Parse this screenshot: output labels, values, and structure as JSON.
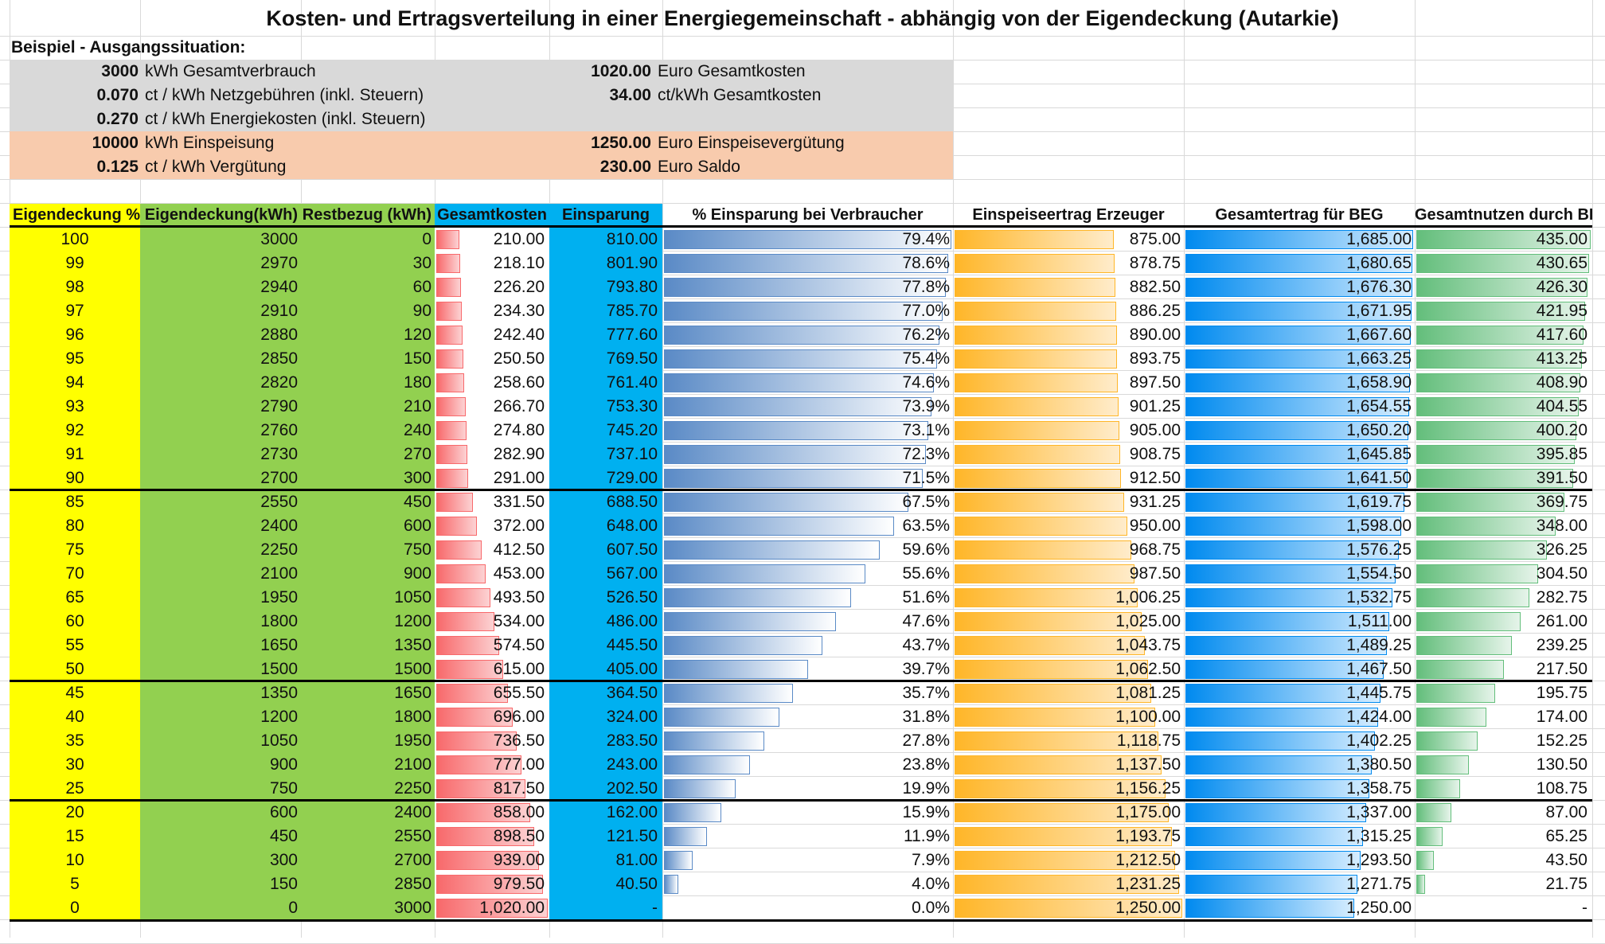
{
  "title": "Kosten- und Ertragsverteilung in einer Energiegemeinschaft - abhängig von der Eigendeckung (Autarkie)",
  "example_heading": "Beispiel - Ausgangssituation:",
  "left_info": [
    {
      "value": "3000",
      "label": "kWh Gesamtverbrauch"
    },
    {
      "value": "0.070",
      "label": "ct / kWh Netzgebühren (inkl. Steuern)"
    },
    {
      "value": "0.270",
      "label": "ct / kWh Energiekosten (inkl. Steuern)"
    },
    {
      "value": "10000",
      "label": "kWh Einspeisung"
    },
    {
      "value": "0.125",
      "label": "ct / kWh Vergütung"
    }
  ],
  "right_info": [
    {
      "value": "1020.00",
      "label": "Euro Gesamtkosten"
    },
    {
      "value": "34.00",
      "label": "ct/kWh Gesamtkosten"
    },
    {
      "value": "",
      "label": ""
    },
    {
      "value": "1250.00",
      "label": "Euro Einspeisevergütung"
    },
    {
      "value": "230.00",
      "label": "Euro Saldo"
    }
  ],
  "colors": {
    "yellow": "#ffff00",
    "green": "#92d050",
    "blue": "#00b0f0",
    "gray_band": "#d9d9d9",
    "peach_band": "#f8cbad",
    "bar_red": "#f8696b",
    "bar_blue": "#638ec6",
    "bar_orange": "#ffb628",
    "bar_lightblue": "#008aef",
    "bar_green": "#63be7b"
  },
  "headers": [
    "Eigendeckung %",
    "Eigendeckung(kWh)",
    "Restbezug (kWh)",
    "Gesamtkosten",
    "Einsparung",
    "% Einsparung bei Verbraucher",
    "Einspeiseertrag Erzeuger",
    "Gesamtertrag für BEG",
    "Gesamtnutzen durch BEG"
  ],
  "rows": [
    [
      "100",
      "3000",
      "0",
      "210.00",
      "810.00",
      "79.4%",
      "875.00",
      "1,685.00",
      "435.00"
    ],
    [
      "99",
      "2970",
      "30",
      "218.10",
      "801.90",
      "78.6%",
      "878.75",
      "1,680.65",
      "430.65"
    ],
    [
      "98",
      "2940",
      "60",
      "226.20",
      "793.80",
      "77.8%",
      "882.50",
      "1,676.30",
      "426.30"
    ],
    [
      "97",
      "2910",
      "90",
      "234.30",
      "785.70",
      "77.0%",
      "886.25",
      "1,671.95",
      "421.95"
    ],
    [
      "96",
      "2880",
      "120",
      "242.40",
      "777.60",
      "76.2%",
      "890.00",
      "1,667.60",
      "417.60"
    ],
    [
      "95",
      "2850",
      "150",
      "250.50",
      "769.50",
      "75.4%",
      "893.75",
      "1,663.25",
      "413.25"
    ],
    [
      "94",
      "2820",
      "180",
      "258.60",
      "761.40",
      "74.6%",
      "897.50",
      "1,658.90",
      "408.90"
    ],
    [
      "93",
      "2790",
      "210",
      "266.70",
      "753.30",
      "73.9%",
      "901.25",
      "1,654.55",
      "404.55"
    ],
    [
      "92",
      "2760",
      "240",
      "274.80",
      "745.20",
      "73.1%",
      "905.00",
      "1,650.20",
      "400.20"
    ],
    [
      "91",
      "2730",
      "270",
      "282.90",
      "737.10",
      "72.3%",
      "908.75",
      "1,645.85",
      "395.85"
    ],
    [
      "90",
      "2700",
      "300",
      "291.00",
      "729.00",
      "71.5%",
      "912.50",
      "1,641.50",
      "391.50"
    ],
    [
      "85",
      "2550",
      "450",
      "331.50",
      "688.50",
      "67.5%",
      "931.25",
      "1,619.75",
      "369.75"
    ],
    [
      "80",
      "2400",
      "600",
      "372.00",
      "648.00",
      "63.5%",
      "950.00",
      "1,598.00",
      "348.00"
    ],
    [
      "75",
      "2250",
      "750",
      "412.50",
      "607.50",
      "59.6%",
      "968.75",
      "1,576.25",
      "326.25"
    ],
    [
      "70",
      "2100",
      "900",
      "453.00",
      "567.00",
      "55.6%",
      "987.50",
      "1,554.50",
      "304.50"
    ],
    [
      "65",
      "1950",
      "1050",
      "493.50",
      "526.50",
      "51.6%",
      "1,006.25",
      "1,532.75",
      "282.75"
    ],
    [
      "60",
      "1800",
      "1200",
      "534.00",
      "486.00",
      "47.6%",
      "1,025.00",
      "1,511.00",
      "261.00"
    ],
    [
      "55",
      "1650",
      "1350",
      "574.50",
      "445.50",
      "43.7%",
      "1,043.75",
      "1,489.25",
      "239.25"
    ],
    [
      "50",
      "1500",
      "1500",
      "615.00",
      "405.00",
      "39.7%",
      "1,062.50",
      "1,467.50",
      "217.50"
    ],
    [
      "45",
      "1350",
      "1650",
      "655.50",
      "364.50",
      "35.7%",
      "1,081.25",
      "1,445.75",
      "195.75"
    ],
    [
      "40",
      "1200",
      "1800",
      "696.00",
      "324.00",
      "31.8%",
      "1,100.00",
      "1,424.00",
      "174.00"
    ],
    [
      "35",
      "1050",
      "1950",
      "736.50",
      "283.50",
      "27.8%",
      "1,118.75",
      "1,402.25",
      "152.25"
    ],
    [
      "30",
      "900",
      "2100",
      "777.00",
      "243.00",
      "23.8%",
      "1,137.50",
      "1,380.50",
      "130.50"
    ],
    [
      "25",
      "750",
      "2250",
      "817.50",
      "202.50",
      "19.9%",
      "1,156.25",
      "1,358.75",
      "108.75"
    ],
    [
      "20",
      "600",
      "2400",
      "858.00",
      "162.00",
      "15.9%",
      "1,175.00",
      "1,337.00",
      "87.00"
    ],
    [
      "15",
      "450",
      "2550",
      "898.50",
      "121.50",
      "11.9%",
      "1,193.75",
      "1,315.25",
      "65.25"
    ],
    [
      "10",
      "300",
      "2700",
      "939.00",
      "81.00",
      "7.9%",
      "1,212.50",
      "1,293.50",
      "43.50"
    ],
    [
      "5",
      "150",
      "2850",
      "979.50",
      "40.50",
      "4.0%",
      "1,231.25",
      "1,271.75",
      "21.75"
    ],
    [
      "0",
      "0",
      "3000",
      "1,020.00",
      "-",
      "0.0%",
      "1,250.00",
      "1,250.00",
      "-"
    ]
  ]
}
